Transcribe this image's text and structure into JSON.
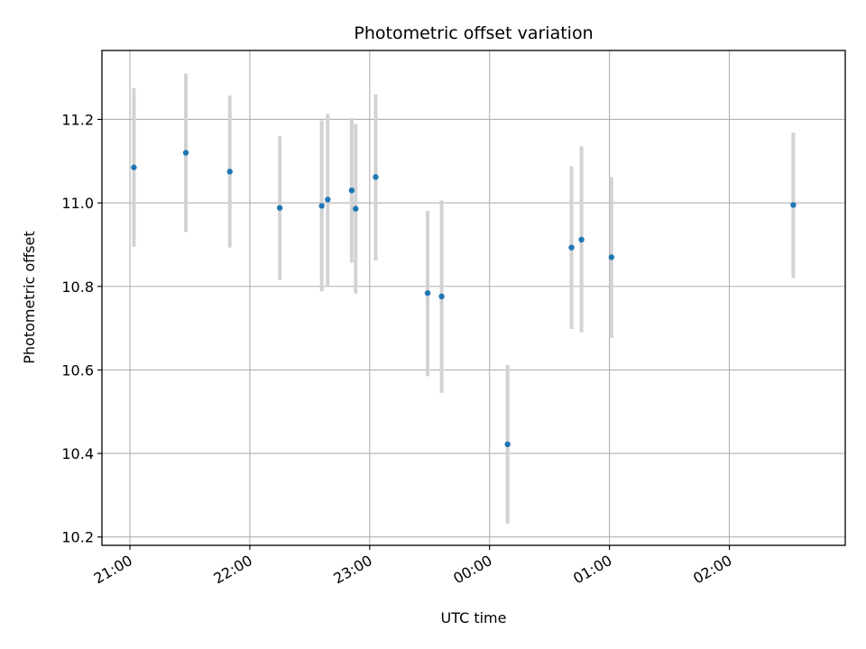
{
  "chart_data": {
    "type": "scatter",
    "title": "Photometric offset variation",
    "xlabel": "UTC time",
    "ylabel": "Photometric offset",
    "x_range": [
      "20:46",
      "02:58"
    ],
    "ylim": [
      10.18,
      11.365
    ],
    "x_ticks": [
      "21:00",
      "22:00",
      "23:00",
      "00:00",
      "01:00",
      "02:00"
    ],
    "y_ticks": [
      10.2,
      10.4,
      10.6,
      10.8,
      11.0,
      11.2
    ],
    "grid": true,
    "point_color": "#1f77b4",
    "errorbar_color": "#d3d3d3",
    "points": [
      {
        "time": "21:02",
        "y": 11.085,
        "low": 10.895,
        "high": 11.275
      },
      {
        "time": "21:28",
        "y": 11.12,
        "low": 10.93,
        "high": 11.31
      },
      {
        "time": "21:50",
        "y": 11.075,
        "low": 10.893,
        "high": 11.257
      },
      {
        "time": "22:15",
        "y": 10.988,
        "low": 10.815,
        "high": 11.16
      },
      {
        "time": "22:36",
        "y": 10.993,
        "low": 10.788,
        "high": 11.198
      },
      {
        "time": "22:39",
        "y": 11.008,
        "low": 10.8,
        "high": 11.213
      },
      {
        "time": "22:51",
        "y": 11.03,
        "low": 10.857,
        "high": 11.203
      },
      {
        "time": "22:53",
        "y": 10.986,
        "low": 10.783,
        "high": 11.189
      },
      {
        "time": "23:03",
        "y": 11.062,
        "low": 10.862,
        "high": 11.26
      },
      {
        "time": "23:29",
        "y": 10.784,
        "low": 10.585,
        "high": 10.981
      },
      {
        "time": "23:36",
        "y": 10.776,
        "low": 10.545,
        "high": 11.006
      },
      {
        "time": "00:09",
        "y": 10.422,
        "low": 10.232,
        "high": 10.612
      },
      {
        "time": "00:41",
        "y": 10.893,
        "low": 10.698,
        "high": 11.088
      },
      {
        "time": "00:46",
        "y": 10.912,
        "low": 10.69,
        "high": 11.135
      },
      {
        "time": "01:01",
        "y": 10.87,
        "low": 10.677,
        "high": 11.062
      },
      {
        "time": "02:32",
        "y": 10.995,
        "low": 10.82,
        "high": 11.168
      }
    ]
  }
}
